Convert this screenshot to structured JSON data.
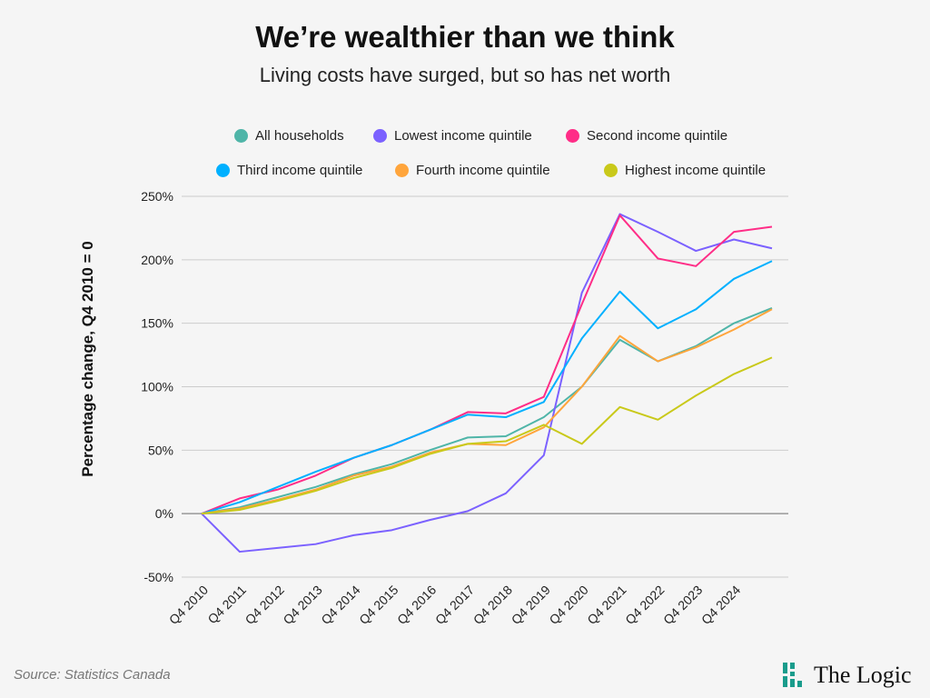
{
  "title": "We’re wealthier than we think",
  "subtitle": "Living costs have surged, but so has net worth",
  "source": "Source: Statistics Canada",
  "logo": "The Logic",
  "chart_data": {
    "type": "line",
    "ylabel": "Percentage change, Q4 2010 = 0",
    "ylim": [
      -50,
      250
    ],
    "yticks": [
      -50,
      0,
      50,
      100,
      150,
      200,
      250
    ],
    "ytick_labels": [
      "-50%",
      "0%",
      "50%",
      "100%",
      "150%",
      "200%",
      "250%"
    ],
    "grid": true,
    "legend_placement": "top",
    "categories": [
      "Q4 2010",
      "Q4 2011",
      "Q4 2012",
      "Q4 2013",
      "Q4 2014",
      "Q4 2015",
      "Q4 2016",
      "Q4 2017",
      "Q4 2018",
      "Q4 2019",
      "Q4 2020",
      "Q4 2021",
      "Q4 2022",
      "Q4 2023",
      "Q4 2024",
      ""
    ],
    "series": [
      {
        "name": "All households",
        "color": "#4fb5a8",
        "values": [
          0,
          5,
          13,
          21,
          31,
          39,
          50,
          60,
          61,
          76,
          100,
          137,
          120,
          132,
          150,
          162
        ]
      },
      {
        "name": "Lowest income quintile",
        "color": "#7b61ff",
        "values": [
          0,
          -30,
          -27,
          -24,
          -17,
          -13,
          -5,
          2,
          16,
          46,
          174,
          236,
          222,
          207,
          216,
          209
        ]
      },
      {
        "name": "Second income quintile",
        "color": "#ff2d87",
        "values": [
          0,
          12,
          19,
          30,
          44,
          54,
          66,
          80,
          79,
          92,
          165,
          235,
          201,
          195,
          222,
          226
        ]
      },
      {
        "name": "Third income quintile",
        "color": "#00b0ff",
        "values": [
          0,
          9,
          21,
          33,
          44,
          54,
          66,
          78,
          76,
          88,
          138,
          175,
          146,
          161,
          185,
          199
        ]
      },
      {
        "name": "Fourth income quintile",
        "color": "#ffa53c",
        "values": [
          0,
          4,
          11,
          19,
          30,
          37,
          48,
          55,
          54,
          68,
          100,
          140,
          120,
          131,
          145,
          161
        ]
      },
      {
        "name": "Highest income quintile",
        "color": "#c9c91a",
        "values": [
          0,
          3,
          10,
          18,
          28,
          36,
          47,
          55,
          57,
          70,
          55,
          84,
          74,
          93,
          110,
          123
        ]
      }
    ]
  }
}
